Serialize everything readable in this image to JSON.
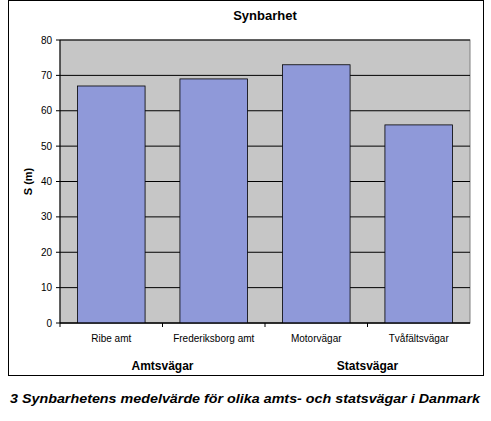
{
  "chart_data": {
    "type": "bar",
    "title": "Synbarhet",
    "y_label": "S (m)",
    "categories": [
      "Ribe amt",
      "Frederiksborg amt",
      "Motorvägar",
      "Tvåfältsvägar"
    ],
    "values": [
      67,
      69,
      73,
      56
    ],
    "color": "#8f99d9",
    "ylim": [
      0,
      80
    ],
    "yticks": [
      0,
      10,
      20,
      30,
      40,
      50,
      60,
      70,
      80
    ],
    "grid": true,
    "annotations": [
      "Amtsvägar",
      "Statsvägar"
    ],
    "caption": "3  Synbarhetens medelvärde för olika amts- och statsvägar i Danmark"
  }
}
